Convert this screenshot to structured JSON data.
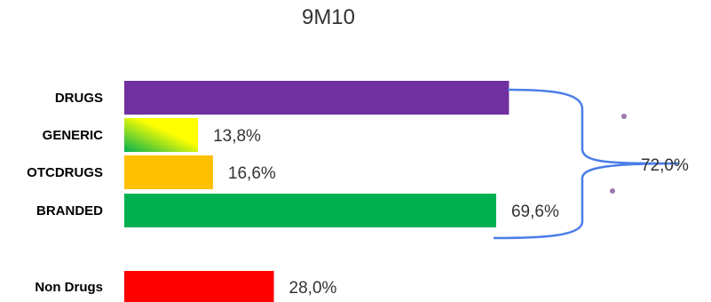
{
  "chart_data": {
    "type": "bar",
    "orientation": "horizontal",
    "title": "9M10",
    "categories": [
      "DRUGS",
      "GENERIC",
      "OTCDRUGS",
      "BRANDED",
      "Non Drugs"
    ],
    "values": [
      72.0,
      13.8,
      16.6,
      69.6,
      28.0
    ],
    "value_labels": [
      "",
      "13,8%",
      "16,6%",
      "69,6%",
      "28,0%"
    ],
    "colors": [
      "#7030a0",
      "#ffff00",
      "#ffc000",
      "#00b050",
      "#ff0000"
    ],
    "generic_gradient": [
      "#00b050",
      "#ffff00"
    ],
    "bracket_label": "72,0%",
    "bracket_color": "#4a7ee8",
    "dot_color": "#9878b0",
    "xlim": [
      0,
      100
    ],
    "grid": false,
    "legend": "none"
  }
}
